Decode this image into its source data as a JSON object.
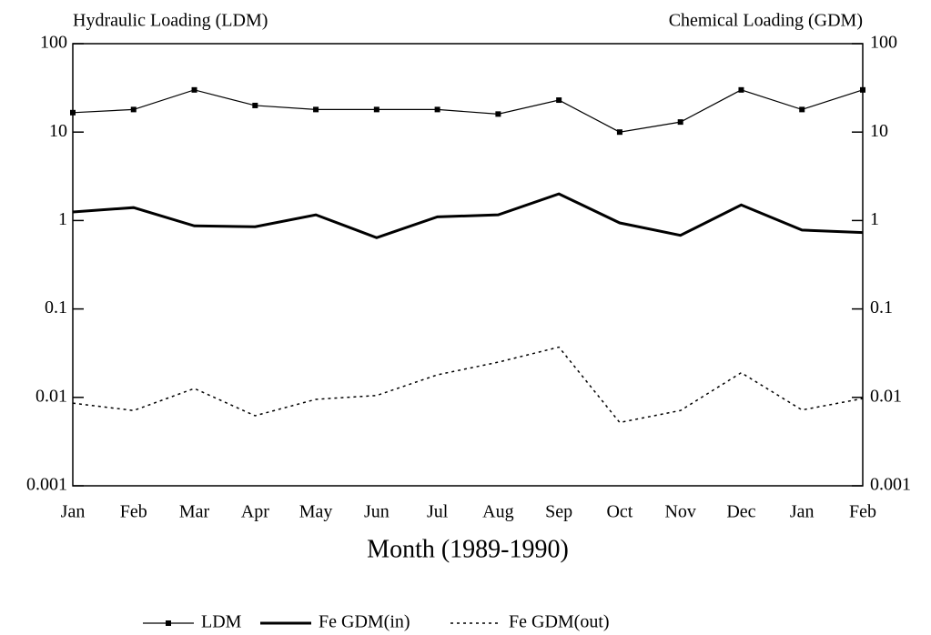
{
  "chart_data": {
    "type": "line",
    "y_label": "Hydraulic Loading (LDM)",
    "y2_label": "Chemical Loading (GDM)",
    "x_label": "Month (1989-1990)",
    "categories": [
      "Jan",
      "Feb",
      "Mar",
      "Apr",
      "May",
      "Jun",
      "Jul",
      "Aug",
      "Sep",
      "Oct",
      "Nov",
      "Dec",
      "Jan",
      "Feb"
    ],
    "log_scale": true,
    "ylim": [
      0.001,
      100
    ],
    "yticks": [
      0.001,
      0.01,
      0.1,
      1,
      10,
      100
    ],
    "y2lim": [
      0.001,
      100
    ],
    "y2ticks": [
      0.001,
      0.01,
      0.1,
      1,
      10,
      100
    ],
    "series": [
      {
        "name": "LDM",
        "color": "#000000",
        "linewidth": 1.2,
        "marker": "square",
        "values": [
          16.6,
          18,
          30,
          20,
          18,
          18,
          18,
          16,
          23,
          10,
          13,
          30,
          18,
          30
        ]
      },
      {
        "name": "Fe GDM(in)",
        "color": "#000000",
        "linewidth": 3,
        "axis": "y2",
        "values": [
          1.25,
          1.4,
          0.87,
          0.85,
          1.16,
          0.64,
          1.1,
          1.16,
          2.0,
          0.94,
          0.68,
          1.5,
          0.78,
          0.73
        ]
      },
      {
        "name": "Fe GDM(out)",
        "color": "#000000",
        "linewidth": 1.5,
        "dash": true,
        "axis": "y2",
        "values": [
          0.0086,
          0.0071,
          0.0126,
          0.0062,
          0.0095,
          0.0105,
          0.018,
          0.025,
          0.037,
          0.0052,
          0.0071,
          0.019,
          0.0072,
          0.0097
        ]
      }
    ]
  }
}
